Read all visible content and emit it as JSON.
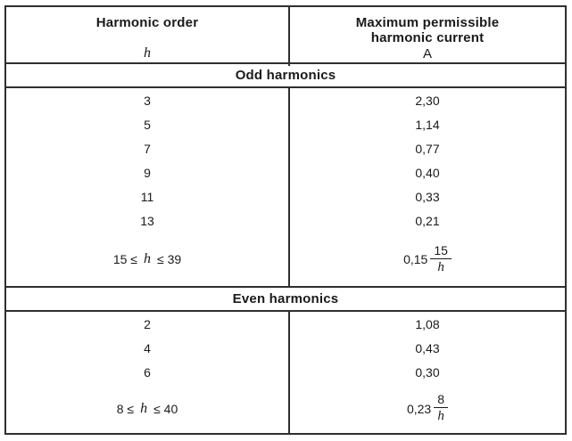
{
  "colors": {
    "border": "#2f2f2f",
    "text": "#1a1a1a",
    "background": "#ffffff"
  },
  "header": {
    "col1_title": "Harmonic order",
    "col1_symbol": "h",
    "col2_title": "Maximum permissible\nharmonic current",
    "col2_unit": "A"
  },
  "sections": [
    {
      "label": "Odd harmonics",
      "rows": [
        {
          "h": "3",
          "i": "2,30"
        },
        {
          "h": "5",
          "i": "1,14"
        },
        {
          "h": "7",
          "i": "0,77"
        },
        {
          "h": "9",
          "i": "0,40"
        },
        {
          "h": "11",
          "i": "0,33"
        },
        {
          "h": "13",
          "i": "0,21"
        }
      ],
      "range": {
        "pre": "15 ≤",
        "var": "h",
        "post": "≤ 39",
        "coef": "0,15",
        "num": "15",
        "den": "h"
      }
    },
    {
      "label": "Even harmonics",
      "rows": [
        {
          "h": "2",
          "i": "1,08"
        },
        {
          "h": "4",
          "i": "0,43"
        },
        {
          "h": "6",
          "i": "0,30"
        }
      ],
      "range": {
        "pre": "8 ≤",
        "var": "h",
        "post": "≤ 40",
        "coef": "0,23",
        "num": "8",
        "den": "h"
      }
    }
  ]
}
